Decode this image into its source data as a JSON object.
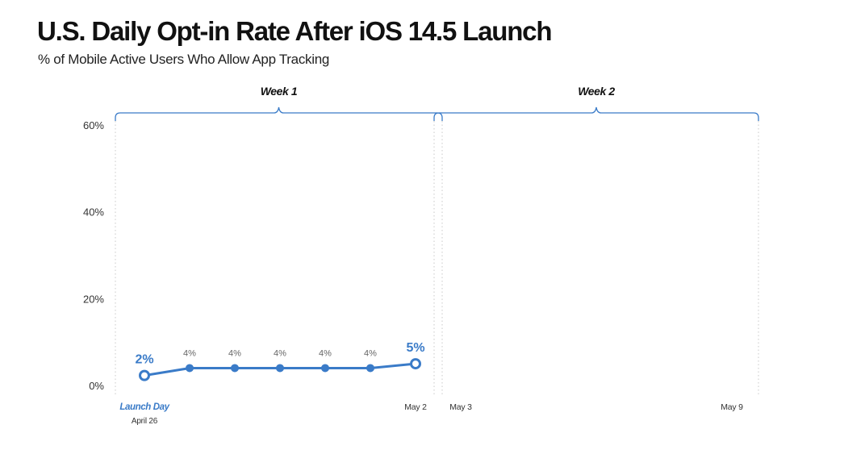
{
  "header": {
    "title": "U.S. Daily Opt-in Rate After iOS 14.5 Launch",
    "subtitle": "% of Mobile Active Users Who Allow App Tracking"
  },
  "colors": {
    "series": "#3a7bc8",
    "text": "#111111",
    "axis_text": "#333333",
    "data_label_small": "#666666",
    "grid": "#c8c8c8"
  },
  "chart_data": {
    "type": "line",
    "title": "U.S. Daily Opt-in Rate After iOS 14.5 Launch",
    "subtitle": "% of Mobile Active Users Who Allow App Tracking",
    "xlabel": "",
    "ylabel": "",
    "ylim": [
      0,
      60
    ],
    "y_ticks": [
      "0%",
      "20%",
      "40%",
      "60%"
    ],
    "x_day_range": [
      1,
      14
    ],
    "grid": false,
    "week_groups": [
      {
        "label": "Week 1",
        "start_day": 1,
        "end_day": 7
      },
      {
        "label": "Week 2",
        "start_day": 8,
        "end_day": 14
      }
    ],
    "x_tick_labels": [
      {
        "day": 1,
        "label": "Launch Day",
        "sublabel": "April 26",
        "style": "accent"
      },
      {
        "day": 7,
        "label": "May 2",
        "sublabel": "",
        "style": "normal"
      },
      {
        "day": 8,
        "label": "May 3",
        "sublabel": "",
        "style": "normal"
      },
      {
        "day": 14,
        "label": "May 9",
        "sublabel": "",
        "style": "normal"
      }
    ],
    "series": [
      {
        "x": [
          1,
          2,
          3,
          4,
          5,
          6,
          7
        ],
        "values": [
          2.3,
          4,
          4,
          4,
          4,
          4,
          5
        ],
        "data_labels": [
          "2%",
          "4%",
          "4%",
          "4%",
          "4%",
          "4%",
          "5%"
        ],
        "emphasized": [
          true,
          false,
          false,
          false,
          false,
          false,
          true
        ]
      }
    ]
  }
}
